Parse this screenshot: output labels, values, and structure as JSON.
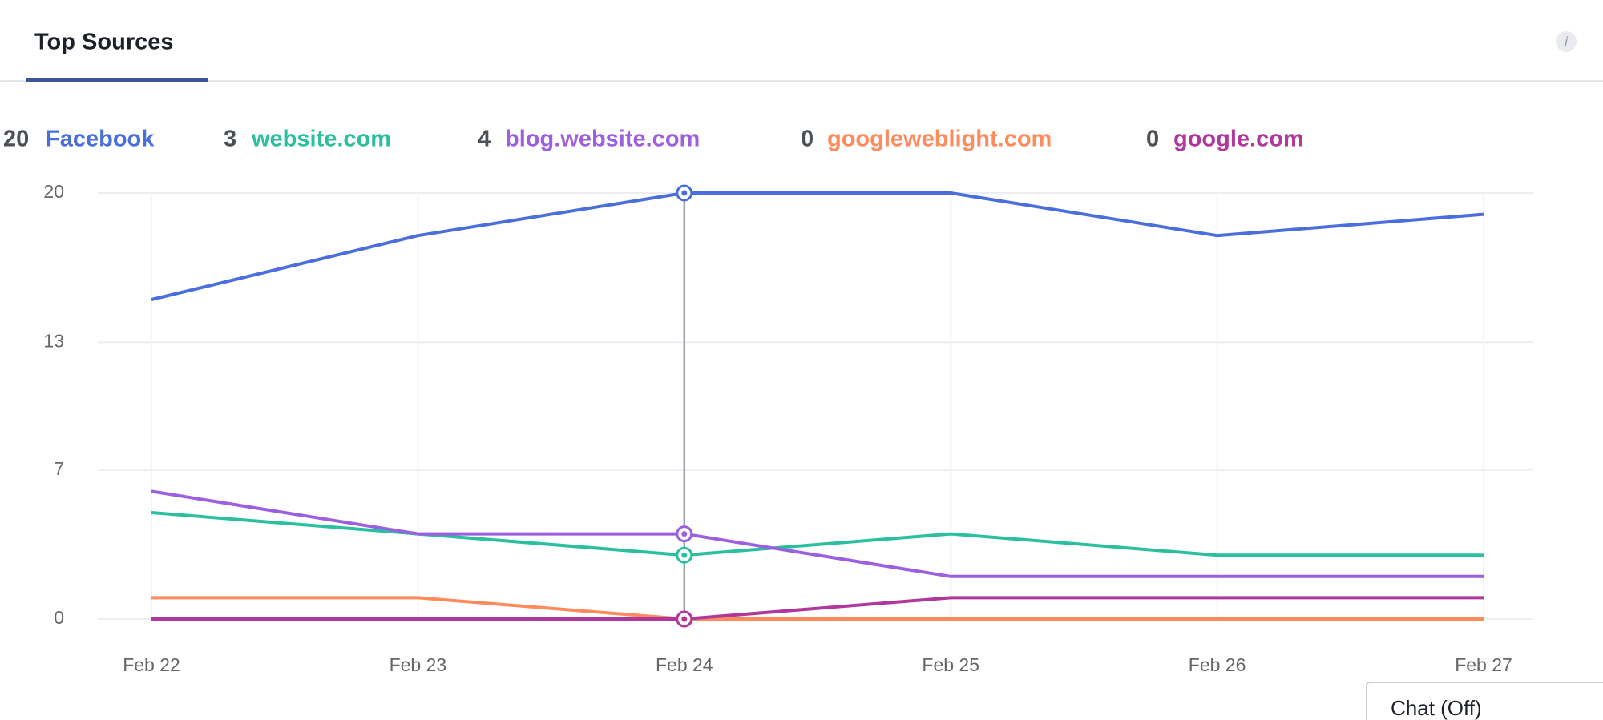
{
  "tab": "Top Sources",
  "chat_button": "Chat (Off)",
  "chart_data": {
    "type": "line",
    "categories": [
      "Feb 22",
      "Feb 23",
      "Feb 24",
      "Feb 25",
      "Feb 26",
      "Feb 27"
    ],
    "series": [
      {
        "name": "Facebook",
        "color": "#4a6fdc",
        "values": [
          15,
          18,
          20,
          20,
          18,
          19
        ]
      },
      {
        "name": "website.com",
        "color": "#2bbfa0",
        "values": [
          5,
          4,
          3,
          4,
          3,
          3
        ]
      },
      {
        "name": "blog.website.com",
        "color": "#9b5fe0",
        "values": [
          6,
          4,
          4,
          2,
          2,
          2
        ]
      },
      {
        "name": "googleweblight.com",
        "color": "#ff8a5c",
        "values": [
          1,
          1,
          0,
          0,
          0,
          0
        ]
      },
      {
        "name": "google.com",
        "color": "#b0379c",
        "values": [
          0,
          0,
          0,
          1,
          1,
          1
        ]
      }
    ],
    "ylim": [
      0,
      20
    ],
    "yticks": [
      0,
      7,
      13,
      20
    ],
    "grid": true,
    "hover_index": 2
  }
}
